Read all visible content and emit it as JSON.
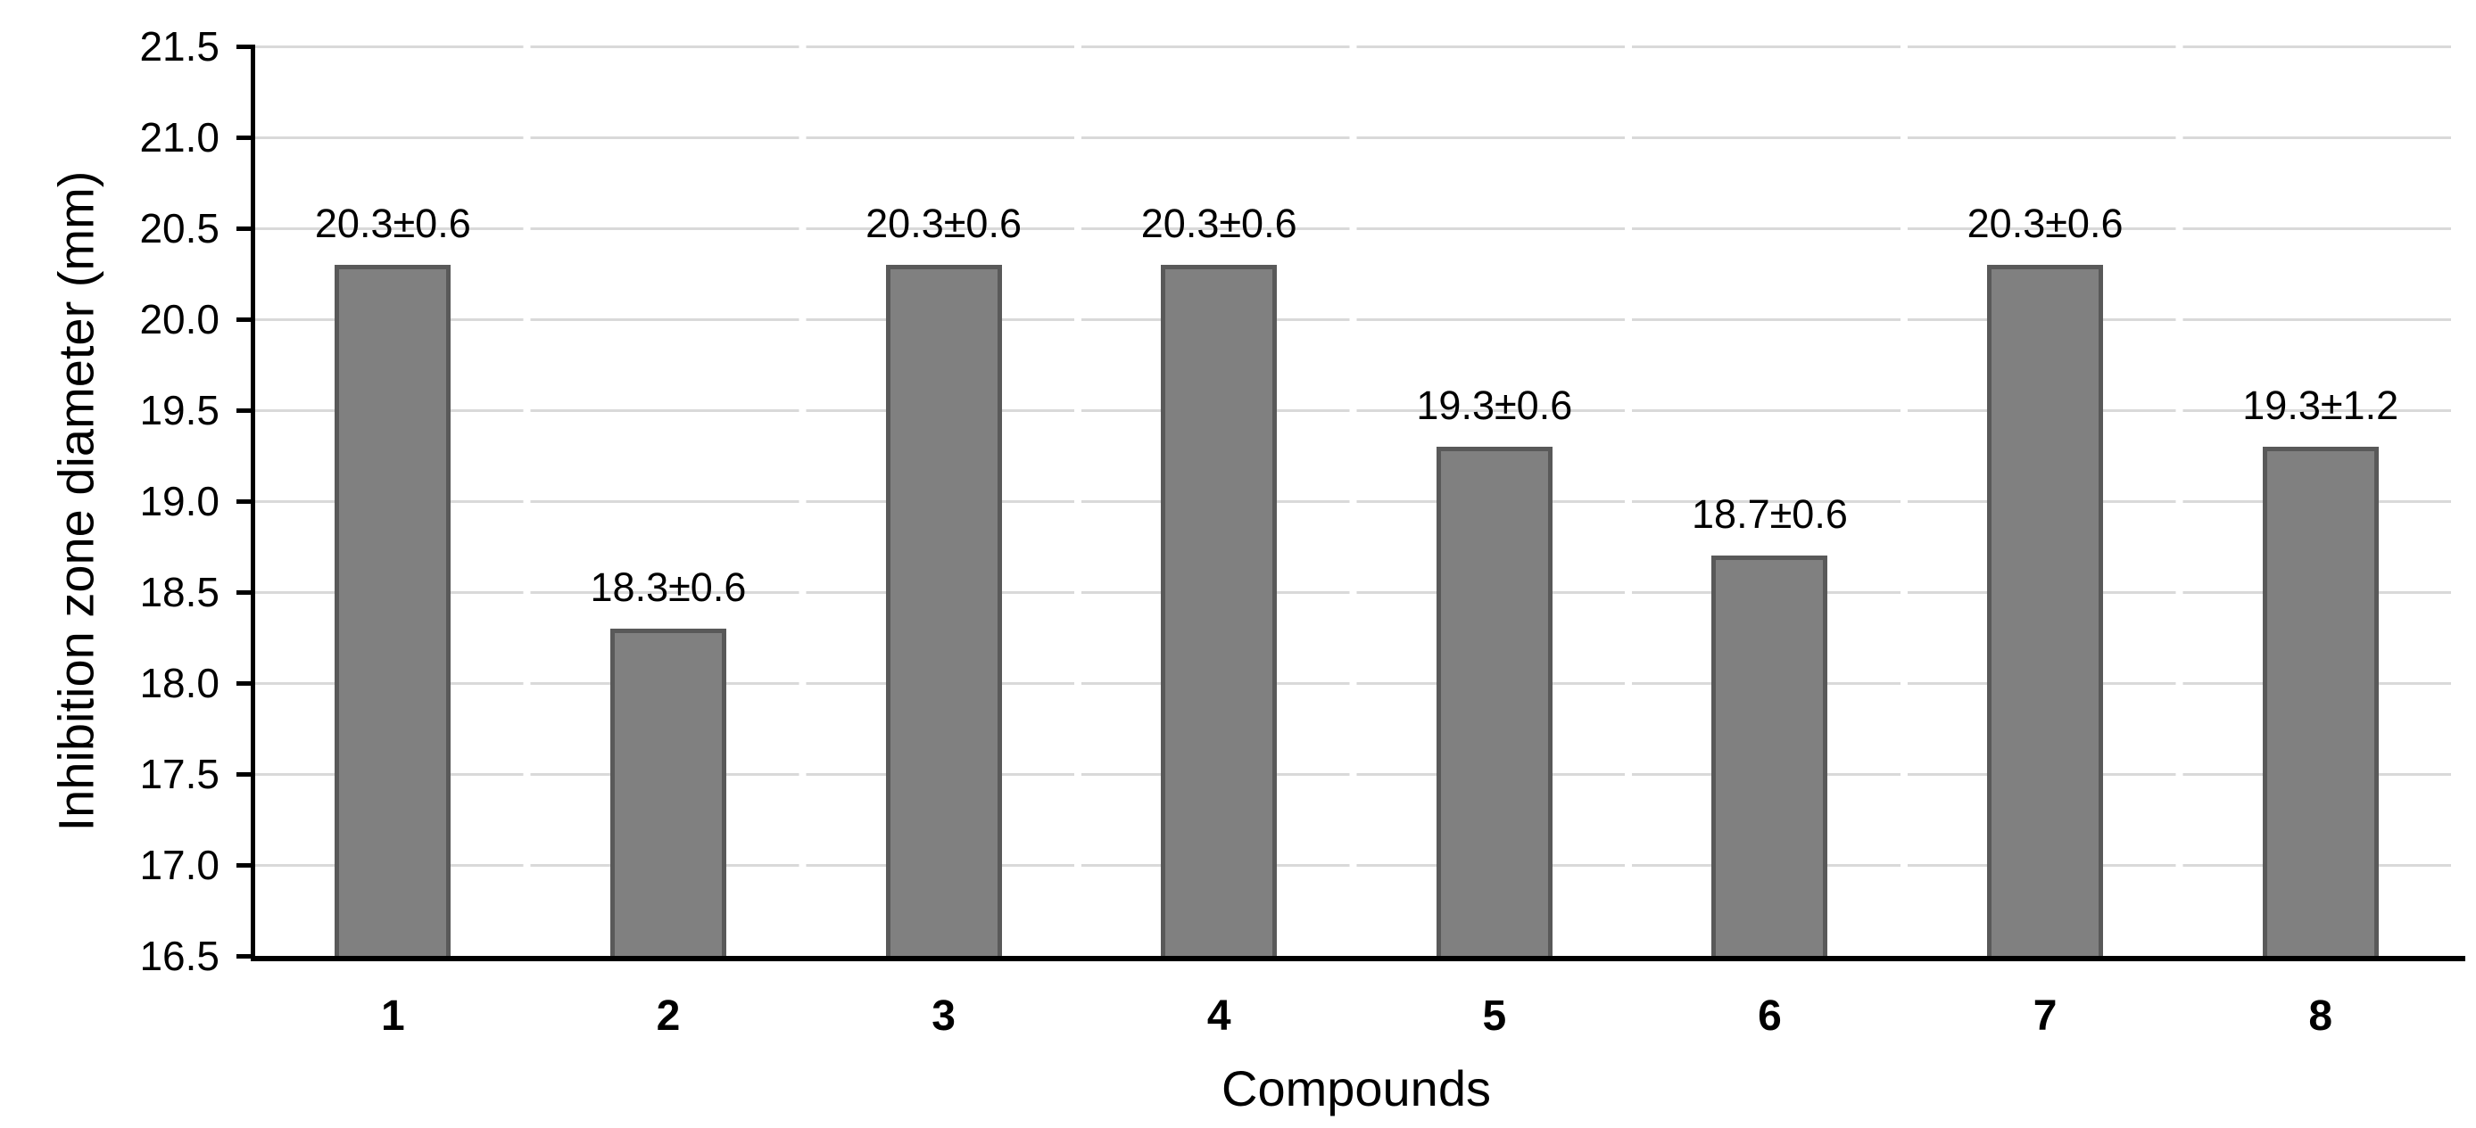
{
  "chart_data": {
    "type": "bar",
    "title": "",
    "categories": [
      "1",
      "2",
      "3",
      "4",
      "5",
      "6",
      "7",
      "8"
    ],
    "values": [
      20.3,
      18.3,
      20.3,
      20.3,
      19.3,
      18.7,
      20.3,
      19.3
    ],
    "errors": [
      0.6,
      0.6,
      0.6,
      0.6,
      0.6,
      0.6,
      0.6,
      1.2
    ],
    "data_labels": [
      "20.3±0.6",
      "18.3±0.6",
      "20.3±0.6",
      "20.3±0.6",
      "19.3±0.6",
      "18.7±0.6",
      "20.3±0.6",
      "19.3±1.2"
    ],
    "xlabel": "Compounds",
    "ylabel": "Inhibition zone diameter (mm)",
    "ylim": [
      16.5,
      21.5
    ],
    "ytick_step": 0.5,
    "ytick_labels": [
      "21.5",
      "21.0",
      "20.5",
      "20.0",
      "19.5",
      "19.0",
      "18.5",
      "18.0",
      "17.5",
      "17.0",
      "16.5"
    ],
    "grid": "horizontal-only",
    "legend_position": "none",
    "colors": {
      "bar_fill": "#808080",
      "bar_border": "#595959",
      "gridline": "#d9d9d9",
      "axis": "#000000",
      "text": "#000000",
      "background": "#ffffff"
    }
  }
}
